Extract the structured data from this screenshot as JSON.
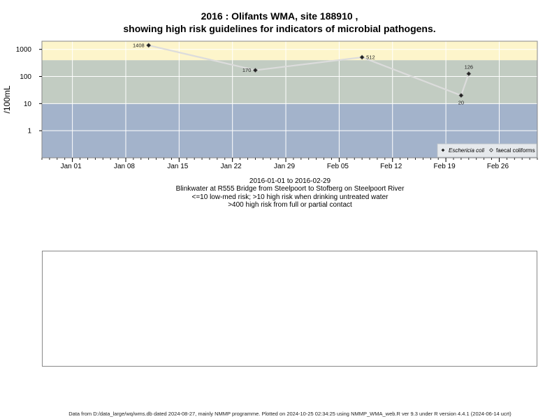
{
  "title_line1": "2016 : Olifants WMA, site 188910 ,",
  "title_line2": "showing high risk guidelines for indicators of microbial pathogens.",
  "subtitles": [
    "2016-01-01 to 2016-02-29",
    "Blinkwater at R555 Bridge from Steelpoort to Stofberg on Steelpoort River",
    "<=10 low-med risk; >10 high risk when drinking untreated water",
    ">400 high risk from full or partial contact"
  ],
  "footer": "Data from D:/data_large/wq/wms.db dated 2024-08-27, mainly NMMP programme. Plotted on 2024-10-25 02:34:25 using NMMP_WMA_web.R ver 9.3 under R version 4.4.1 (2024-06-14 ucrt)",
  "chart_data": {
    "type": "line",
    "ylabel": "/100mL",
    "y_scale": "log10",
    "ylim": [
      0.1,
      2000
    ],
    "yticks": [
      1,
      10,
      100,
      1000
    ],
    "ytick_labels": [
      "1",
      "10",
      "100",
      "1000"
    ],
    "xlim": [
      "2015-12-28",
      "2016-03-02"
    ],
    "xticks": [
      "2016-01-01",
      "2016-01-08",
      "2016-01-15",
      "2016-01-22",
      "2016-01-29",
      "2016-02-05",
      "2016-02-12",
      "2016-02-19",
      "2016-02-26"
    ],
    "xtick_labels": [
      "Jan 01",
      "Jan 08",
      "Jan 15",
      "Jan 22",
      "Jan 29",
      "Feb 05",
      "Feb 12",
      "Feb 19",
      "Feb 26"
    ],
    "bands": [
      {
        "from": 0.1,
        "to": 10,
        "color": "#a3b3cb"
      },
      {
        "from": 10,
        "to": 400,
        "color": "#c2ccc2"
      },
      {
        "from": 400,
        "to": 2000,
        "color": "#fdf5cb"
      }
    ],
    "series": [
      {
        "name": "Eschericia coli",
        "marker": "diamond-filled",
        "line_color": "#dcdcdc",
        "x": [
          "2016-01-11",
          "2016-01-25",
          "2016-02-08",
          "2016-02-21",
          "2016-02-22"
        ],
        "y": [
          1408,
          170,
          512,
          20,
          126
        ],
        "labels": [
          "1408",
          "170",
          "512",
          "20",
          "126"
        ],
        "label_pos": [
          "left",
          "left",
          "right",
          "below",
          "above"
        ]
      },
      {
        "name": "faecal coliforms",
        "marker": "diamond-open",
        "x": [],
        "y": []
      }
    ],
    "legend_position": "bottom-right",
    "grid": true
  }
}
